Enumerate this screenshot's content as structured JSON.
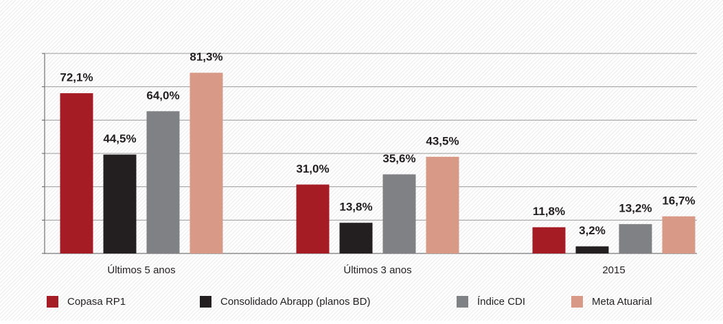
{
  "chart_data": {
    "type": "bar",
    "categories": [
      "Últimos 5 anos",
      "Últimos 3 anos",
      "2015"
    ],
    "series": [
      {
        "name": "Copasa RP1",
        "color": "#a51c24",
        "values": [
          72.1,
          31.0,
          11.8
        ],
        "value_labels": [
          "72,1%",
          "31,0%",
          "11,8%"
        ]
      },
      {
        "name": "Consolidado Abrapp (planos BD)",
        "color": "#231f20",
        "values": [
          44.5,
          13.8,
          3.2
        ],
        "value_labels": [
          "44,5%",
          "13,8%",
          "3,2%"
        ]
      },
      {
        "name": "Índice CDI",
        "color": "#808184",
        "values": [
          64.0,
          35.6,
          13.2
        ],
        "value_labels": [
          "64,0%",
          "35,6%",
          "13,2%"
        ]
      },
      {
        "name": "Meta Atuarial",
        "color": "#d89a86",
        "values": [
          81.3,
          43.5,
          16.7
        ],
        "value_labels": [
          "81,3%",
          "43,5%",
          "16,7%"
        ]
      }
    ],
    "ylim": [
      0,
      90
    ],
    "yticks": [
      0,
      15,
      30,
      45,
      60,
      75,
      90
    ],
    "grid": true,
    "legend": "bottom"
  }
}
